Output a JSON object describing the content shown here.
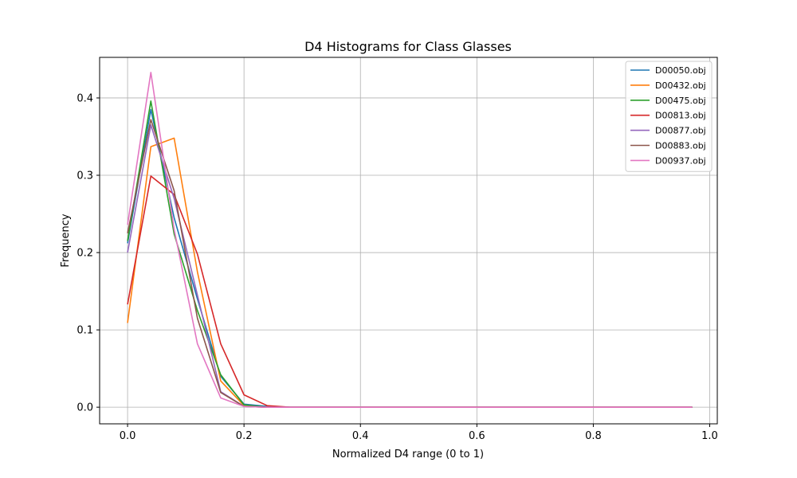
{
  "chart_data": {
    "type": "line",
    "title": "D4 Histograms for Class Glasses",
    "xlabel": "Normalized D4 range (0 to 1)",
    "ylabel": "Frequency",
    "xlim": [
      -0.048,
      1.013
    ],
    "ylim": [
      -0.0215,
      0.4525
    ],
    "xticks": [
      0.0,
      0.2,
      0.4,
      0.6,
      0.8,
      1.0
    ],
    "xtick_labels": [
      "0.0",
      "0.2",
      "0.4",
      "0.6",
      "0.8",
      "1.0"
    ],
    "yticks": [
      0.0,
      0.1,
      0.2,
      0.3,
      0.4
    ],
    "ytick_labels": [
      "0.0",
      "0.1",
      "0.2",
      "0.3",
      "0.4"
    ],
    "grid": true,
    "legend_position": "top-right",
    "x": [
      0.0,
      0.04,
      0.08,
      0.12,
      0.16,
      0.2,
      0.24,
      0.28,
      0.32,
      0.36,
      0.4,
      0.44,
      0.48,
      0.52,
      0.56,
      0.6,
      0.64,
      0.68,
      0.72,
      0.76,
      0.8,
      0.84,
      0.88,
      0.92,
      0.97
    ],
    "series": [
      {
        "name": "D00050.obj",
        "color": "#1f77b4",
        "values": [
          0.212,
          0.385,
          0.245,
          0.14,
          0.04,
          0.004,
          0.001,
          0,
          0,
          0,
          0,
          0,
          0,
          0,
          0,
          0,
          0,
          0,
          0,
          0,
          0,
          0,
          0,
          0,
          0
        ]
      },
      {
        "name": "D00432.obj",
        "color": "#ff7f0e",
        "values": [
          0.109,
          0.337,
          0.348,
          0.175,
          0.034,
          0.002,
          0,
          0,
          0,
          0,
          0,
          0,
          0,
          0,
          0,
          0,
          0,
          0,
          0,
          0,
          0,
          0,
          0,
          0,
          0
        ]
      },
      {
        "name": "D00475.obj",
        "color": "#2ca02c",
        "values": [
          0.215,
          0.396,
          0.224,
          0.125,
          0.042,
          0.003,
          0,
          0,
          0,
          0,
          0,
          0,
          0,
          0,
          0,
          0,
          0,
          0,
          0,
          0,
          0,
          0,
          0,
          0,
          0
        ]
      },
      {
        "name": "D00813.obj",
        "color": "#d62728",
        "values": [
          0.133,
          0.299,
          0.275,
          0.198,
          0.082,
          0.016,
          0.002,
          0,
          0,
          0,
          0,
          0,
          0,
          0,
          0,
          0,
          0,
          0,
          0,
          0,
          0,
          0,
          0,
          0,
          0
        ]
      },
      {
        "name": "D00877.obj",
        "color": "#9467bd",
        "values": [
          0.2,
          0.365,
          0.27,
          0.145,
          0.02,
          0.001,
          0,
          0,
          0,
          0,
          0,
          0,
          0,
          0,
          0,
          0,
          0,
          0,
          0,
          0,
          0,
          0,
          0,
          0,
          0
        ]
      },
      {
        "name": "D00883.obj",
        "color": "#8c564b",
        "values": [
          0.225,
          0.372,
          0.28,
          0.115,
          0.019,
          0.001,
          0,
          0,
          0,
          0,
          0,
          0,
          0,
          0,
          0,
          0,
          0,
          0,
          0,
          0,
          0,
          0,
          0,
          0,
          0
        ]
      },
      {
        "name": "D00937.obj",
        "color": "#e377c2",
        "values": [
          0.236,
          0.433,
          0.23,
          0.082,
          0.012,
          0.001,
          0,
          0,
          0,
          0,
          0,
          0,
          0,
          0,
          0,
          0,
          0,
          0,
          0,
          0,
          0,
          0,
          0,
          0,
          0
        ]
      }
    ]
  }
}
